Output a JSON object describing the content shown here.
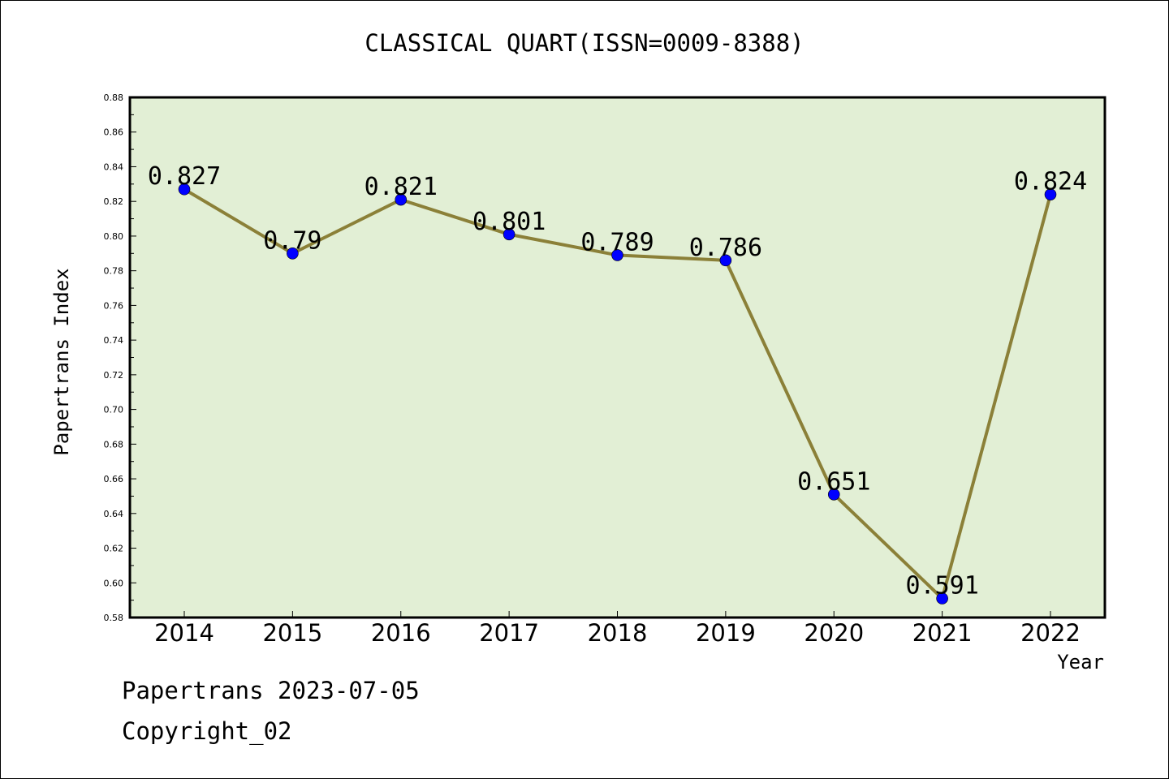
{
  "chart_data": {
    "type": "line",
    "title": "CLASSICAL QUART(ISSN=0009-8388)",
    "xlabel": "Year",
    "ylabel": "Papertrans Index",
    "categories": [
      "2014",
      "2015",
      "2016",
      "2017",
      "2018",
      "2019",
      "2020",
      "2021",
      "2022"
    ],
    "series": [
      {
        "values": [
          0.827,
          0.79,
          0.821,
          0.801,
          0.789,
          0.786,
          0.651,
          0.591,
          0.824
        ],
        "labels": [
          "0.827",
          "0.79",
          "0.821",
          "0.801",
          "0.789",
          "0.786",
          "0.651",
          "0.591",
          "0.824"
        ]
      }
    ],
    "ylim": [
      0.58,
      0.88
    ],
    "yticks": [
      "0.58",
      "0.60",
      "0.62",
      "0.64",
      "0.66",
      "0.68",
      "0.70",
      "0.72",
      "0.74",
      "0.76",
      "0.78",
      "0.80",
      "0.82",
      "0.84",
      "0.86",
      "0.88"
    ],
    "grid": false,
    "colors": {
      "plot_background": "#e2efd5",
      "line": "#8b8038",
      "marker": "#0000ff"
    }
  },
  "footer": {
    "line1": "Papertrans 2023-07-05",
    "line2": "Copyright_02"
  }
}
